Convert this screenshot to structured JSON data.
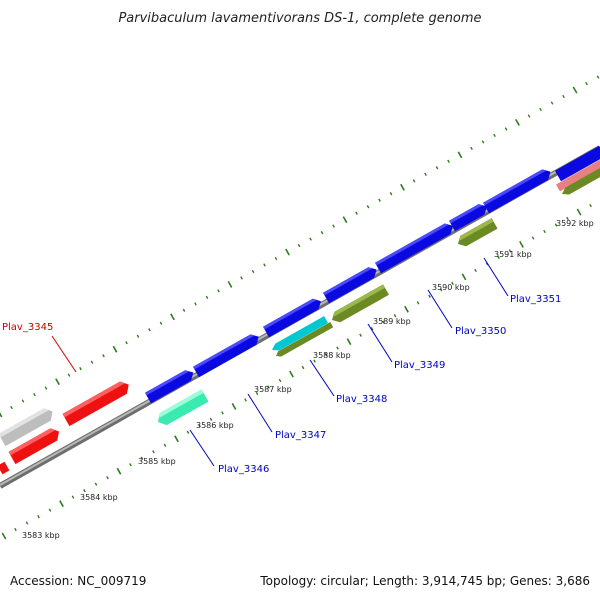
{
  "title": "Parvibaculum lavamentivorans DS-1, complete genome",
  "accession": "Accession: NC_009719",
  "summary": "Topology: circular; Length: 3,914,745 bp; Genes: 3,686",
  "colors": {
    "backbone": "#8a8a8a",
    "tick": "#2e7d1e",
    "forward_cds": "#0a0ae0",
    "reverse_cds": "#6b8a23",
    "reverse_cds_teal": "#00c8d0",
    "reverse_cds_mint": "#3aeab0",
    "red_gene": "#ee1111",
    "gray_gene": "#bdbdbd",
    "pink_gene": "#e88080",
    "label_blue": "#0000c8",
    "label_red": "#cc0000"
  },
  "scale_labels": [
    "3583 kbp",
    "3584 kbp",
    "3585 kbp",
    "3586 kbp",
    "3587 kbp",
    "3588 kbp",
    "3589 kbp",
    "3590 kbp",
    "3591 kbp",
    "3592 kbp"
  ],
  "gene_labels": [
    "Plav_3345",
    "Plav_3346",
    "Plav_3347",
    "Plav_3348",
    "Plav_3349",
    "Plav_3350",
    "Plav_3351"
  ]
}
